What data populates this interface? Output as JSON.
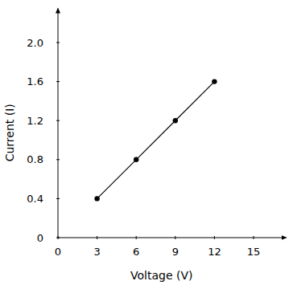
{
  "chart_data": {
    "type": "line",
    "x_label": "Voltage (V)",
    "y_label": "Current (I)",
    "x": [
      3,
      6,
      9,
      12
    ],
    "values": [
      0.4,
      0.8,
      1.2,
      1.6
    ],
    "color": "#000000",
    "marker": "circle",
    "xlim": [
      0,
      17.5
    ],
    "xticks": [
      0,
      3,
      6,
      9,
      12,
      15
    ],
    "ylim": [
      0,
      2.35
    ],
    "yticks": [
      0,
      0.4,
      0.8,
      1.2,
      1.6,
      {
        "value": 2,
        "label": "2.0"
      }
    ],
    "grid": false
  }
}
